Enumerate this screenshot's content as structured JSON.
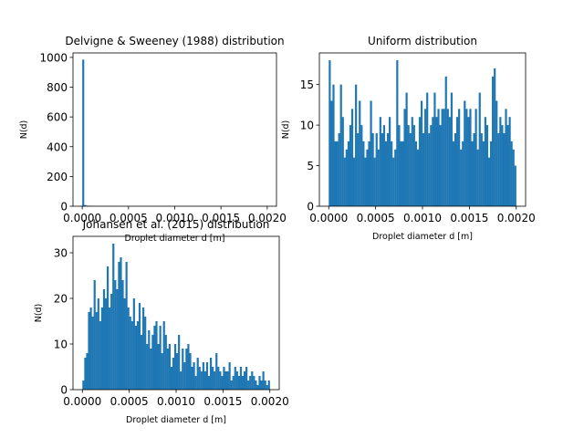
{
  "colors": {
    "bar": "#1f77b4",
    "axes": "#000000",
    "background": "#ffffff"
  },
  "chart_data": [
    {
      "type": "bar",
      "title": "Delvigne & Sweeney (1988) distribution",
      "xlabel": "Droplet diameter d [m]",
      "ylabel": "N(d)",
      "xlim": [
        -0.0001,
        0.0021
      ],
      "ylim": [
        0,
        1030
      ],
      "xticks": [
        0.0,
        0.0005,
        0.001,
        0.0015,
        0.002
      ],
      "xtick_labels": [
        "0.0000",
        "0.0005",
        "0.0010",
        "0.0015",
        "0.0020"
      ],
      "yticks": [
        0,
        200,
        400,
        600,
        800,
        1000
      ],
      "ytick_labels": [
        "0",
        "200",
        "400",
        "600",
        "800",
        "1000"
      ],
      "bins": {
        "start": 0.0,
        "end": 0.002,
        "count": 100
      },
      "values": [
        985,
        8,
        4,
        3,
        2,
        2,
        1,
        1,
        1,
        1,
        1,
        1,
        1,
        1,
        1,
        1,
        1,
        1,
        1,
        1,
        1,
        1,
        0,
        0,
        0,
        0,
        0,
        0,
        0,
        0,
        0,
        0,
        0,
        0,
        0,
        0,
        0,
        0,
        0,
        0,
        0,
        0,
        0,
        0,
        0,
        0,
        1,
        0,
        0,
        0,
        0,
        0,
        0,
        0,
        0,
        0,
        0,
        0,
        0,
        0,
        0,
        0,
        0,
        0,
        0,
        0,
        0,
        0,
        0,
        0,
        0,
        0,
        0,
        0,
        0,
        0,
        0,
        0,
        0,
        0,
        0,
        0,
        0,
        0,
        0,
        0,
        0,
        0,
        0,
        0,
        0,
        0,
        0,
        0,
        0,
        0,
        0,
        0,
        0,
        0
      ]
    },
    {
      "type": "bar",
      "title": "Uniform distribution",
      "xlabel": "Droplet diameter d [m]",
      "ylabel": "N(d)",
      "xlim": [
        -0.0001,
        0.0021
      ],
      "ylim": [
        0,
        18.9
      ],
      "xticks": [
        0.0,
        0.0005,
        0.001,
        0.0015,
        0.002
      ],
      "xtick_labels": [
        "0.0000",
        "0.0005",
        "0.0010",
        "0.0015",
        "0.0020"
      ],
      "yticks": [
        0,
        5,
        10,
        15
      ],
      "ytick_labels": [
        "0",
        "5",
        "10",
        "15"
      ],
      "bins": {
        "start": 0.0,
        "end": 0.002,
        "count": 100
      },
      "values": [
        18,
        13,
        15,
        8,
        8,
        9,
        15,
        11,
        6,
        7,
        8,
        10,
        12,
        6,
        15,
        9,
        13,
        10,
        8,
        6,
        7,
        8,
        13,
        9,
        6,
        9,
        7,
        11,
        9,
        10,
        8,
        9,
        11,
        8,
        6,
        7,
        18,
        10,
        8,
        8,
        12,
        14,
        10,
        9,
        11,
        10,
        8,
        7,
        11,
        13,
        9,
        12,
        14,
        9,
        10,
        11,
        14,
        11,
        12,
        10,
        12,
        12,
        16,
        12,
        11,
        14,
        8,
        9,
        11,
        12,
        7,
        8,
        13,
        12,
        11,
        12,
        8,
        9,
        12,
        7,
        14,
        9,
        8,
        11,
        10,
        6,
        8,
        16,
        17,
        13,
        9,
        11,
        10,
        9,
        12,
        10,
        11,
        8,
        7,
        5
      ]
    },
    {
      "type": "bar",
      "title": "Johansen et al. (2015) distribution",
      "xlabel": "Droplet diameter d [m]",
      "ylabel": "N(d)",
      "xlim": [
        -0.0001,
        0.0021
      ],
      "ylim": [
        0,
        33.6
      ],
      "xticks": [
        0.0,
        0.0005,
        0.001,
        0.0015,
        0.002
      ],
      "xtick_labels": [
        "0.0000",
        "0.0005",
        "0.0010",
        "0.0015",
        "0.0020"
      ],
      "yticks": [
        0,
        10,
        20,
        30
      ],
      "ytick_labels": [
        "0",
        "10",
        "20",
        "30"
      ],
      "bins": {
        "start": 0.0,
        "end": 0.002,
        "count": 100
      },
      "values": [
        2,
        7,
        8,
        17,
        18,
        16,
        24,
        17,
        20,
        15,
        18,
        22,
        20,
        27,
        18,
        21,
        32,
        24,
        22,
        28,
        29,
        24,
        20,
        28,
        18,
        16,
        15,
        20,
        14,
        15,
        19,
        12,
        18,
        16,
        10,
        13,
        9,
        12,
        14,
        15,
        10,
        14,
        8,
        15,
        12,
        9,
        10,
        5,
        7,
        10,
        8,
        12,
        4,
        9,
        6,
        9,
        10,
        8,
        5,
        6,
        3,
        7,
        5,
        4,
        6,
        4,
        6,
        3,
        7,
        5,
        4,
        8,
        5,
        4,
        3,
        5,
        4,
        4,
        6,
        2,
        3,
        5,
        4,
        3,
        5,
        3,
        4,
        5,
        2,
        3,
        4,
        3,
        2,
        1,
        3,
        2,
        4,
        2,
        1,
        2
      ]
    }
  ]
}
